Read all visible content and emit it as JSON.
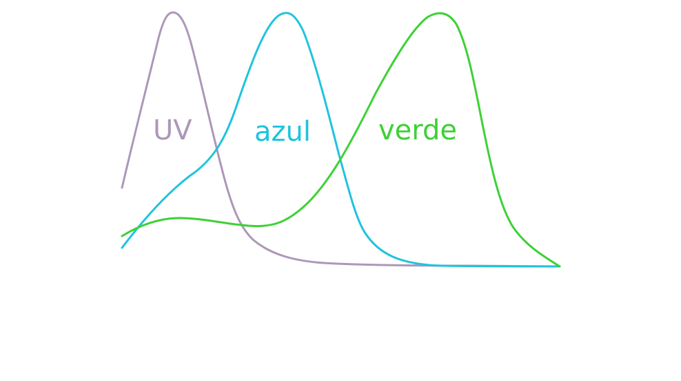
{
  "diagram": {
    "curves": [
      {
        "id": "uv",
        "label": "UV",
        "color": "#ad97b8"
      },
      {
        "id": "azul",
        "label": "azul",
        "color": "#1fc3dd"
      },
      {
        "id": "verde",
        "label": "verde",
        "color": "#3dd134"
      }
    ]
  }
}
